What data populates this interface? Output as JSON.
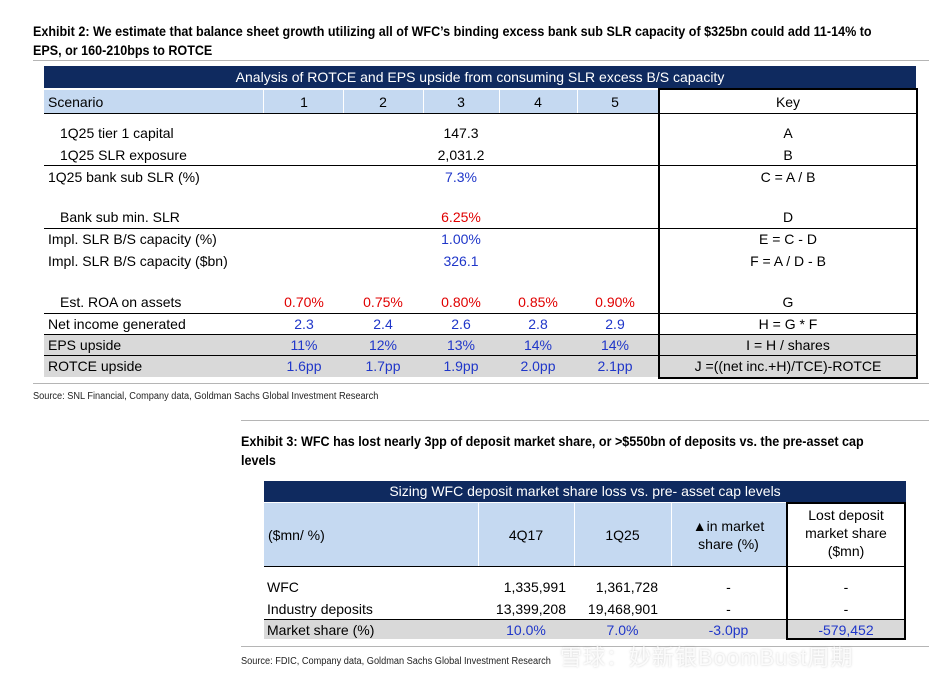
{
  "exhibit2": {
    "title_line1": "Exhibit 2: We estimate that balance sheet growth utilizing all of WFC’s binding excess bank sub SLR capacity of $325bn could add 11-14% to",
    "title_line2": "EPS, or 160-210bps to ROTCE",
    "table_title": "Analysis of ROTCE and EPS upside from consuming SLR excess B/S capacity",
    "header": {
      "scenario": "Scenario",
      "cols": [
        "1",
        "2",
        "3",
        "4",
        "5"
      ],
      "key": "Key"
    },
    "rows": [
      {
        "label": "1Q25 tier 1 capital",
        "value": "147.3",
        "key": "A"
      },
      {
        "label": "1Q25 SLR exposure",
        "value": "2,031.2",
        "key": "B"
      },
      {
        "label": "1Q25 bank sub SLR (%)",
        "value": "7.3%",
        "key": "C = A / B"
      },
      {
        "label": "Bank sub min. SLR",
        "value": "6.25%",
        "key": "D"
      },
      {
        "label": "Impl. SLR B/S capacity (%)",
        "value": "1.00%",
        "key": "E = C - D"
      },
      {
        "label": "Impl. SLR B/S capacity ($bn)",
        "value": "326.1",
        "key": "F = A / D - B"
      },
      {
        "label": "Est. ROA on assets",
        "values": [
          "0.70%",
          "0.75%",
          "0.80%",
          "0.85%",
          "0.90%"
        ],
        "key": "G"
      },
      {
        "label": "Net income generated",
        "values": [
          "2.3",
          "2.4",
          "2.6",
          "2.8",
          "2.9"
        ],
        "key": "H = G * F"
      },
      {
        "label": "EPS upside",
        "values": [
          "11%",
          "12%",
          "13%",
          "14%",
          "14%"
        ],
        "key": "I = H / shares"
      },
      {
        "label": "ROTCE upside",
        "values": [
          "1.6pp",
          "1.7pp",
          "1.9pp",
          "2.0pp",
          "2.1pp"
        ],
        "key": "J =((net inc.+H)/TCE)-ROTCE"
      }
    ],
    "source": "Source: SNL Financial, Company data, Goldman Sachs Global Investment Research"
  },
  "exhibit3": {
    "title_line1": "Exhibit 3: WFC has lost nearly 3pp of deposit market share, or >$550bn of deposits vs. the pre-asset cap",
    "title_line2": "levels",
    "table_title": "Sizing WFC deposit market share loss vs. pre- asset cap levels",
    "header": {
      "unit": "($mn/ %)",
      "c1": "4Q17",
      "c2": "1Q25",
      "c3_line1": "▲in market",
      "c3_line2": "share (%)",
      "c4_line1": "Lost deposit",
      "c4_line2": "market share",
      "c4_line3": "($mn)"
    },
    "rows": [
      {
        "label": "WFC",
        "v1": "1,335,991",
        "v2": "1,361,728",
        "v3": "-",
        "v4": "-"
      },
      {
        "label": "Industry deposits",
        "v1": "13,399,208",
        "v2": "19,468,901",
        "v3": "-",
        "v4": "-"
      },
      {
        "label": "Market share (%)",
        "v1": "10.0%",
        "v2": "7.0%",
        "v3": "-3.0pp",
        "v4": "-579,452"
      }
    ],
    "source": "Source: FDIC, Company data, Goldman Sachs Global Investment Research"
  },
  "watermark": "雪球：妙新银BoomBust周期",
  "colors": {
    "navy": "#0f2a5f",
    "blue_text": "#1f36c9",
    "red_text": "#e00000",
    "header_blue": "#c5d9f1",
    "grey_row": "#d9d9d9"
  }
}
